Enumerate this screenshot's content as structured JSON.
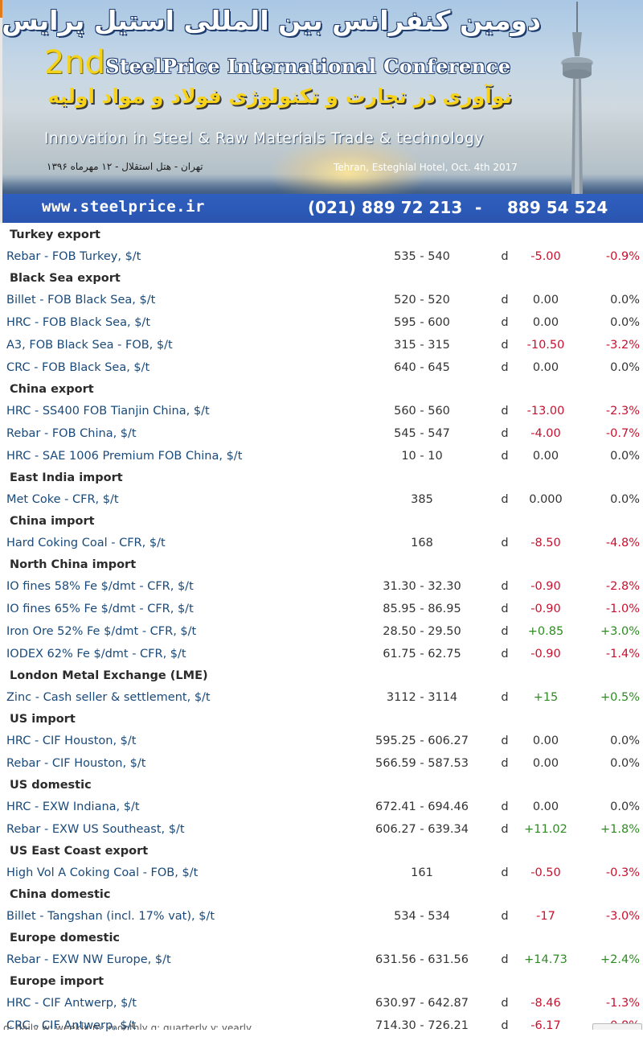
{
  "banner": {
    "fa_title": "دومین کنفرانس بین المللی استیل پرایس",
    "en_prefix": "2nd",
    "en_title": "SteelPrice International Conference",
    "fa_subtitle": "نوآوری در تجارت و تکنولوژی فولاد و مواد اولیه",
    "en_subtitle": "Innovation in Steel & Raw Materials Trade & technology",
    "fa_venue": "تهران - هتل استقلال - ۱۲ مهرماه ۱۳۹۶",
    "en_venue": "Tehran, Esteghlal Hotel, Oct. 4th 2017",
    "url": "www.steelprice.ir",
    "phone1": "(021)  889 72 213",
    "phone_sep": "-",
    "phone2": "889 54 524",
    "colors": {
      "bar": "#2f5fbf",
      "gold": "#f2d21a"
    }
  },
  "sections": [
    {
      "title": "Turkey export",
      "rows": [
        {
          "name": "Rebar - FOB Turkey, $/t",
          "price": "535 - 540",
          "freq": "d",
          "change": "-5.00",
          "pct": "-0.9%",
          "dir": "neg"
        }
      ]
    },
    {
      "title": "Black Sea export",
      "rows": [
        {
          "name": "Billet - FOB Black Sea, $/t",
          "price": "520 - 520",
          "freq": "d",
          "change": "0.00",
          "pct": "0.0%",
          "dir": "zero"
        },
        {
          "name": "HRC - FOB Black Sea, $/t",
          "price": "595 - 600",
          "freq": "d",
          "change": "0.00",
          "pct": "0.0%",
          "dir": "zero"
        },
        {
          "name": "A3, FOB Black Sea - FOB, $/t",
          "price": "315 - 315",
          "freq": "d",
          "change": "-10.50",
          "pct": "-3.2%",
          "dir": "neg"
        },
        {
          "name": "CRC - FOB Black Sea, $/t",
          "price": "640 - 645",
          "freq": "d",
          "change": "0.00",
          "pct": "0.0%",
          "dir": "zero"
        }
      ]
    },
    {
      "title": "China export",
      "rows": [
        {
          "name": "HRC - SS400 FOB Tianjin China, $/t",
          "price": "560 - 560",
          "freq": "d",
          "change": "-13.00",
          "pct": "-2.3%",
          "dir": "neg"
        },
        {
          "name": "Rebar - FOB China, $/t",
          "price": "545 - 547",
          "freq": "d",
          "change": "-4.00",
          "pct": "-0.7%",
          "dir": "neg"
        },
        {
          "name": "HRC - SAE 1006 Premium FOB China, $/t",
          "price": "10 - 10",
          "freq": "d",
          "change": "0.00",
          "pct": "0.0%",
          "dir": "zero"
        }
      ]
    },
    {
      "title": "East India import",
      "rows": [
        {
          "name": "Met Coke - CFR, $/t",
          "price": "385",
          "freq": "d",
          "change": "0.000",
          "pct": "0.0%",
          "dir": "zero"
        }
      ]
    },
    {
      "title": "China import",
      "rows": [
        {
          "name": "Hard Coking Coal - CFR, $/t",
          "price": "168",
          "freq": "d",
          "change": "-8.50",
          "pct": "-4.8%",
          "dir": "neg"
        }
      ]
    },
    {
      "title": "North China import",
      "rows": [
        {
          "name": "IO fines 58% Fe $/dmt - CFR, $/t",
          "price": "31.30 - 32.30",
          "freq": "d",
          "change": "-0.90",
          "pct": "-2.8%",
          "dir": "neg"
        },
        {
          "name": "IO fines 65% Fe $/dmt - CFR, $/t",
          "price": "85.95 - 86.95",
          "freq": "d",
          "change": "-0.90",
          "pct": "-1.0%",
          "dir": "neg"
        },
        {
          "name": "Iron Ore 52% Fe $/dmt - CFR, $/t",
          "price": "28.50 - 29.50",
          "freq": "d",
          "change": "+0.85",
          "pct": "+3.0%",
          "dir": "pos"
        },
        {
          "name": "IODEX 62% Fe $/dmt - CFR, $/t",
          "price": "61.75 - 62.75",
          "freq": "d",
          "change": "-0.90",
          "pct": "-1.4%",
          "dir": "neg"
        }
      ]
    },
    {
      "title": "London Metal Exchange (LME)",
      "rows": [
        {
          "name": "Zinc - Cash seller & settlement, $/t",
          "price": "3112 - 3114",
          "freq": "d",
          "change": "+15",
          "pct": "+0.5%",
          "dir": "pos"
        }
      ]
    },
    {
      "title": "US import",
      "rows": [
        {
          "name": "HRC - CIF Houston, $/t",
          "price": "595.25 - 606.27",
          "freq": "d",
          "change": "0.00",
          "pct": "0.0%",
          "dir": "zero"
        },
        {
          "name": "Rebar - CIF Houston, $/t",
          "price": "566.59 - 587.53",
          "freq": "d",
          "change": "0.00",
          "pct": "0.0%",
          "dir": "zero"
        }
      ]
    },
    {
      "title": "US domestic",
      "rows": [
        {
          "name": "HRC - EXW Indiana, $/t",
          "price": "672.41 - 694.46",
          "freq": "d",
          "change": "0.00",
          "pct": "0.0%",
          "dir": "zero"
        },
        {
          "name": "Rebar - EXW US Southeast, $/t",
          "price": "606.27 - 639.34",
          "freq": "d",
          "change": "+11.02",
          "pct": "+1.8%",
          "dir": "pos"
        }
      ]
    },
    {
      "title": "US East Coast export",
      "rows": [
        {
          "name": "High Vol A Coking Coal - FOB, $/t",
          "price": "161",
          "freq": "d",
          "change": "-0.50",
          "pct": "-0.3%",
          "dir": "neg"
        }
      ]
    },
    {
      "title": "China domestic",
      "rows": [
        {
          "name": "Billet - Tangshan (incl. 17% vat), $/t",
          "price": "534 - 534",
          "freq": "d",
          "change": "-17",
          "pct": "-3.0%",
          "dir": "neg"
        }
      ]
    },
    {
      "title": "Europe domestic",
      "rows": [
        {
          "name": "Rebar - EXW NW Europe, $/t",
          "price": "631.56 - 631.56",
          "freq": "d",
          "change": "+14.73",
          "pct": "+2.4%",
          "dir": "pos"
        }
      ]
    },
    {
      "title": "Europe import",
      "rows": [
        {
          "name": "HRC - CIF Antwerp, $/t",
          "price": "630.97 - 642.87",
          "freq": "d",
          "change": "-8.46",
          "pct": "-1.3%",
          "dir": "neg"
        },
        {
          "name": "CRC - CIF Antwerp, $/t",
          "price": "714.30 - 726.21",
          "freq": "d",
          "change": "-6.17",
          "pct": "-0.8%",
          "dir": "neg"
        }
      ]
    }
  ],
  "footer": {
    "links": "d: daily  w: weekly  m: monthly  q: quarterly  y: yearly"
  }
}
